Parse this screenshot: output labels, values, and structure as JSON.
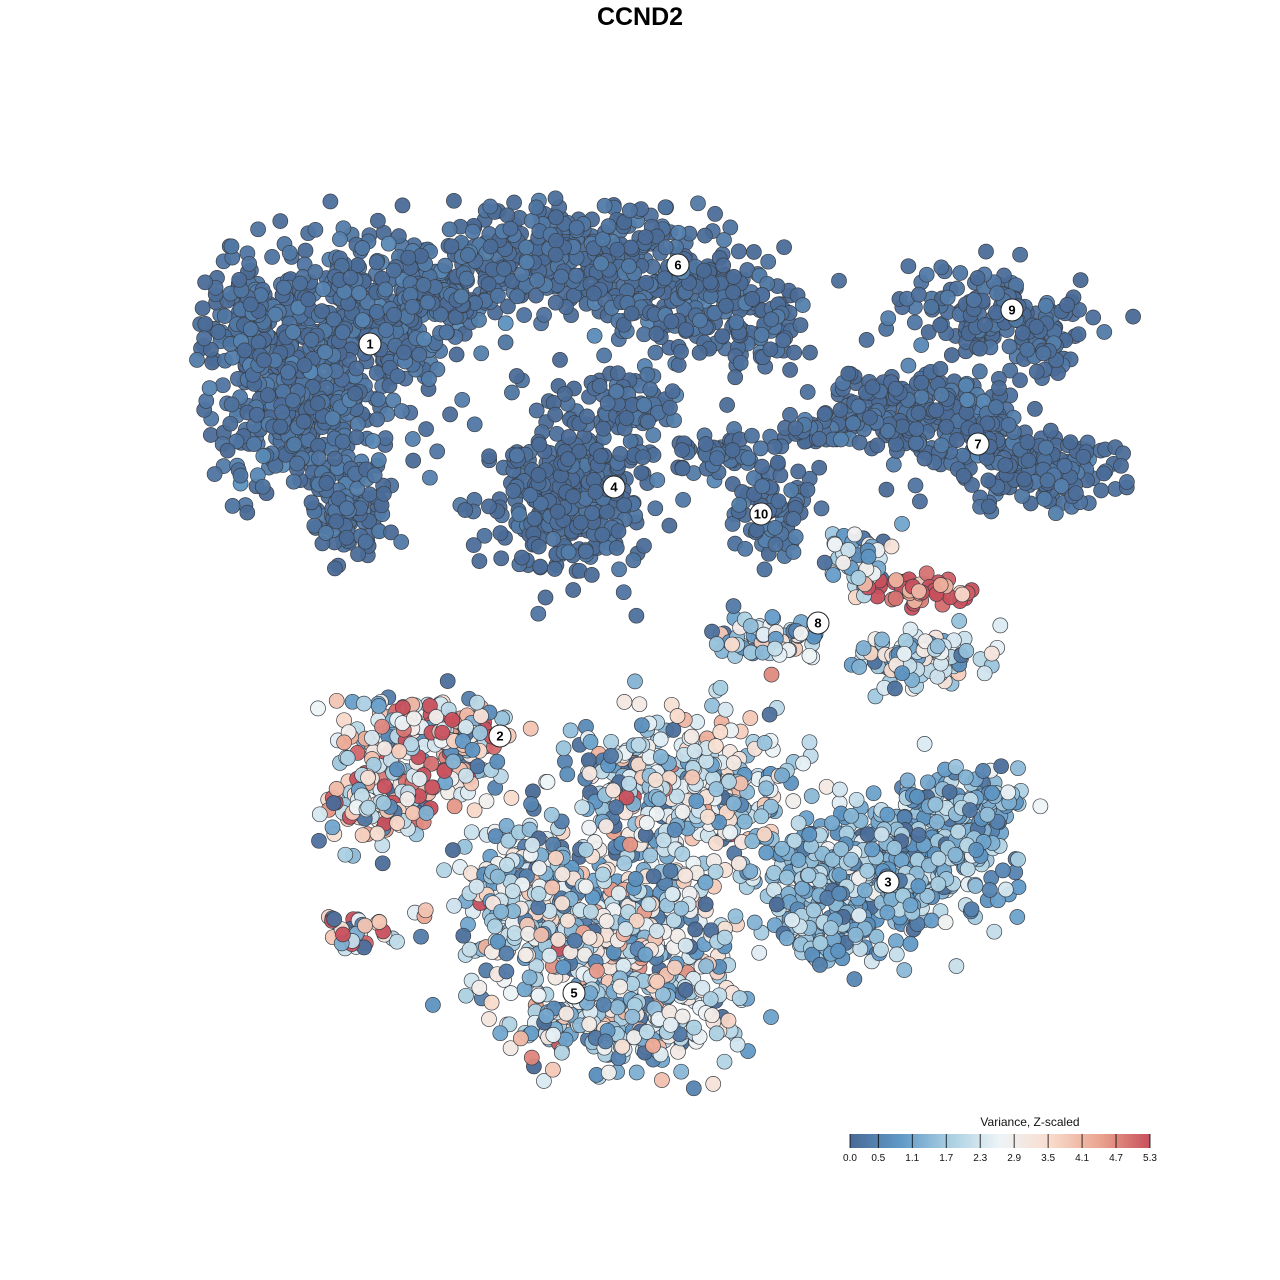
{
  "title": "CCND2",
  "chart_data": {
    "type": "scatter",
    "title": "CCND2",
    "xlabel": "",
    "ylabel": "",
    "grid": false,
    "legend_position": "bottom-right",
    "colorbar": {
      "title": "Variance, Z-scaled",
      "min": 0.0,
      "max": 5.3,
      "ticks": [
        "0.0",
        "0.5",
        "1.1",
        "1.7",
        "2.3",
        "2.9",
        "3.5",
        "4.1",
        "4.7",
        "5.3"
      ],
      "colors": [
        "#4a6a96",
        "#5f98c6",
        "#a9cfe2",
        "#eef4f7",
        "#f9dccd",
        "#eaa48f",
        "#c8505d"
      ]
    },
    "clusters": [
      {
        "label": "1",
        "level": 0.15
      },
      {
        "label": "2",
        "level": 3.0
      },
      {
        "label": "3",
        "level": 1.3
      },
      {
        "label": "4",
        "level": 0.05
      },
      {
        "label": "5",
        "level": 2.1
      },
      {
        "label": "6",
        "level": 0.1
      },
      {
        "label": "7",
        "level": 0.1
      },
      {
        "label": "8",
        "level": 1.9
      },
      {
        "label": "9",
        "level": 0.1
      },
      {
        "label": "10",
        "level": 0.15
      },
      {
        "label": "",
        "level": 5.2
      }
    ]
  }
}
